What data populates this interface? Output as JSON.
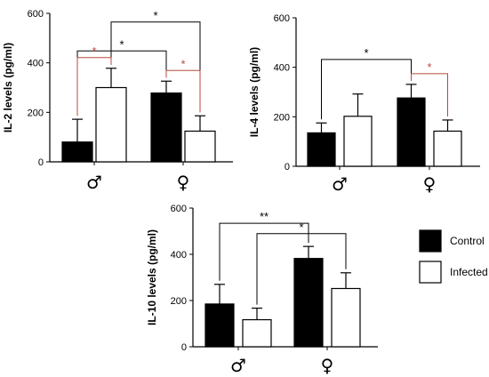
{
  "chart_data": [
    {
      "type": "bar",
      "panel": "IL-2",
      "ylabel": "IL-2  levels (pg/ml)",
      "ylim": [
        0,
        600
      ],
      "yticks": [
        "0",
        "200",
        "400",
        "600"
      ],
      "categories": [
        "♂",
        "♀"
      ],
      "series": [
        {
          "name": "Control",
          "values": [
            80,
            278
          ],
          "errors": [
            92,
            48
          ]
        },
        {
          "name": "Infected",
          "values": [
            300,
            124
          ],
          "errors": [
            78,
            62
          ]
        }
      ],
      "annotations": [
        {
          "text": "*",
          "color": "#000000",
          "from": [
            0,
            0
          ],
          "to": [
            1,
            0
          ]
        },
        {
          "text": "*",
          "color": "#000000",
          "from": [
            0,
            1
          ],
          "to": [
            1,
            1
          ]
        },
        {
          "text": "*",
          "color": "#b84a38",
          "from": [
            0,
            0
          ],
          "to": [
            0,
            1
          ]
        },
        {
          "text": "*",
          "color": "#b84a38",
          "from": [
            1,
            0
          ],
          "to": [
            1,
            1
          ]
        }
      ]
    },
    {
      "type": "bar",
      "panel": "IL-4",
      "ylabel": "IL-4  levels (pg/ml)",
      "ylim": [
        0,
        600
      ],
      "yticks": [
        "0",
        "200",
        "400",
        "600"
      ],
      "categories": [
        "♂",
        "♀"
      ],
      "series": [
        {
          "name": "Control",
          "values": [
            135,
            276
          ],
          "errors": [
            40,
            55
          ]
        },
        {
          "name": "Infected",
          "values": [
            202,
            142
          ],
          "errors": [
            90,
            45
          ]
        }
      ],
      "annotations": [
        {
          "text": "*",
          "color": "#000000",
          "from": [
            0,
            0
          ],
          "to": [
            1,
            0
          ]
        },
        {
          "text": "*",
          "color": "#b84a38",
          "from": [
            1,
            0
          ],
          "to": [
            1,
            1
          ]
        }
      ]
    },
    {
      "type": "bar",
      "panel": "IL-10",
      "ylabel": "IL-10  levels (pg/ml)",
      "ylim": [
        0,
        600
      ],
      "yticks": [
        "0",
        "200",
        "400",
        "600"
      ],
      "categories": [
        "♂",
        "♀"
      ],
      "series": [
        {
          "name": "Control",
          "values": [
            185,
            382
          ],
          "errors": [
            85,
            52
          ]
        },
        {
          "name": "Infected",
          "values": [
            117,
            252
          ],
          "errors": [
            50,
            68
          ]
        }
      ],
      "annotations": [
        {
          "text": "**",
          "color": "#000000",
          "from": [
            0,
            0
          ],
          "to": [
            1,
            0
          ]
        },
        {
          "text": "*",
          "color": "#000000",
          "from": [
            0,
            1
          ],
          "to": [
            1,
            1
          ]
        }
      ]
    }
  ],
  "legend": [
    {
      "label": "Control",
      "fill": "#000000"
    },
    {
      "label": "Infected",
      "fill": "#ffffff"
    }
  ],
  "colors": {
    "control": "#000000",
    "infected": "#ffffff",
    "significance_red": "#b84a38"
  }
}
